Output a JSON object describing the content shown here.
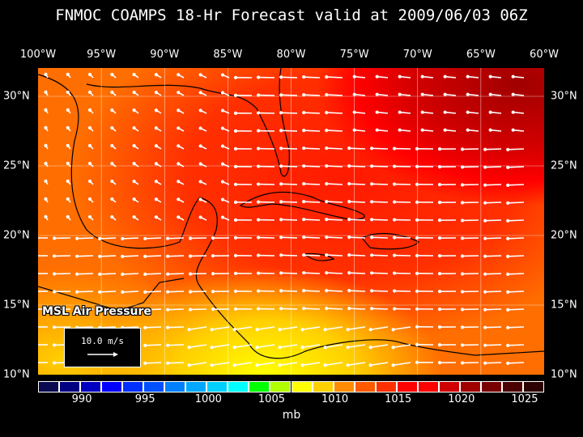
{
  "title": "FNMOC COAMPS 18-Hr Forecast valid at 2009/06/03 06Z",
  "lon_labels": [
    "100°W",
    "95°W",
    "90°W",
    "85°W",
    "80°W",
    "75°W",
    "70°W",
    "65°W",
    "60°W"
  ],
  "lat_labels": [
    "30°N",
    "25°N",
    "20°N",
    "15°N",
    "10°N"
  ],
  "field_label": "MSL Air Pressure",
  "wind_key": {
    "label": "10.0 m/s"
  },
  "colorbar": {
    "unit": "mb",
    "labels": [
      "990",
      "995",
      "1000",
      "1005",
      "1010",
      "1015",
      "1020",
      "1025"
    ],
    "colors": [
      "#0a0a50",
      "#000080",
      "#0000c0",
      "#0000ff",
      "#0030ff",
      "#0050ff",
      "#0080ff",
      "#00a8ff",
      "#00d0ff",
      "#00ffff",
      "#00ff00",
      "#b0ff00",
      "#ffff00",
      "#ffd000",
      "#ff8c00",
      "#ff5a00",
      "#ff3000",
      "#ff0000",
      "#ff0000",
      "#d00000",
      "#a00000",
      "#780000",
      "#4a0000",
      "#2a0000"
    ]
  }
}
